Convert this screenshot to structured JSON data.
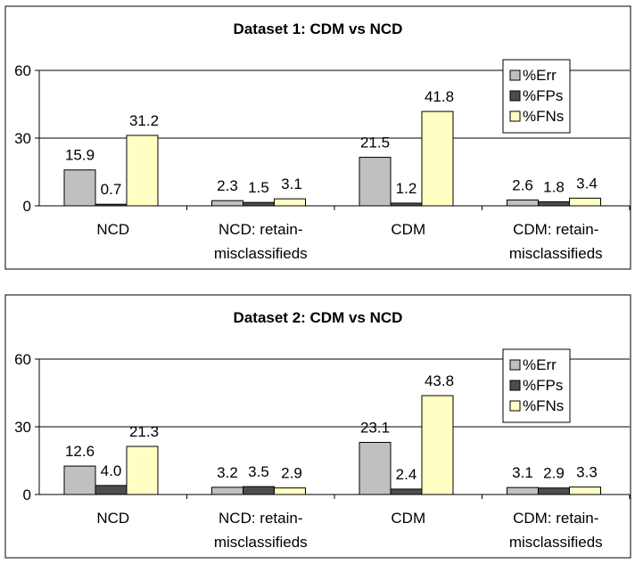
{
  "colors": {
    "err": "#c0c0c0",
    "fps": "#4d4d4d",
    "fns": "#ffffc4",
    "border": "#000000",
    "grid": "#000000"
  },
  "chart_data": [
    {
      "type": "bar",
      "title": "Dataset 1: CDM vs NCD",
      "categories": [
        [
          "NCD"
        ],
        [
          "NCD: retain-",
          "misclassifieds"
        ],
        [
          "CDM"
        ],
        [
          "CDM: retain-",
          "misclassifieds"
        ]
      ],
      "series": [
        {
          "name": "%Err",
          "values": [
            15.9,
            2.3,
            21.5,
            2.6
          ],
          "labels": [
            "15.9",
            "2.3",
            "21.5",
            "2.6"
          ]
        },
        {
          "name": "%FPs",
          "values": [
            0.7,
            1.5,
            1.2,
            1.8
          ],
          "labels": [
            "0.7",
            "1.5",
            "1.2",
            "1.8"
          ]
        },
        {
          "name": "%FNs",
          "values": [
            31.2,
            3.1,
            41.8,
            3.4
          ],
          "labels": [
            "31.2",
            "3.1",
            "41.8",
            "3.4"
          ]
        }
      ],
      "yticks": [
        0,
        30,
        60
      ],
      "ylim": [
        0,
        60
      ],
      "grid": true,
      "legend": "top-right"
    },
    {
      "type": "bar",
      "title": "Dataset 2: CDM vs NCD",
      "categories": [
        [
          "NCD"
        ],
        [
          "NCD: retain-",
          "misclassifieds"
        ],
        [
          "CDM"
        ],
        [
          "CDM: retain-",
          "misclassifieds"
        ]
      ],
      "series": [
        {
          "name": "%Err",
          "values": [
            12.6,
            3.2,
            23.1,
            3.1
          ],
          "labels": [
            "12.6",
            "3.2",
            "23.1",
            "3.1"
          ]
        },
        {
          "name": "%FPs",
          "values": [
            4.0,
            3.5,
            2.4,
            2.9
          ],
          "labels": [
            "4.0",
            "3.5",
            "2.4",
            "2.9"
          ]
        },
        {
          "name": "%FNs",
          "values": [
            21.3,
            2.9,
            43.8,
            3.3
          ],
          "labels": [
            "21.3",
            "2.9",
            "43.8",
            "3.3"
          ]
        }
      ],
      "yticks": [
        0,
        30,
        60
      ],
      "ylim": [
        0,
        60
      ],
      "grid": true,
      "legend": "top-right"
    }
  ]
}
